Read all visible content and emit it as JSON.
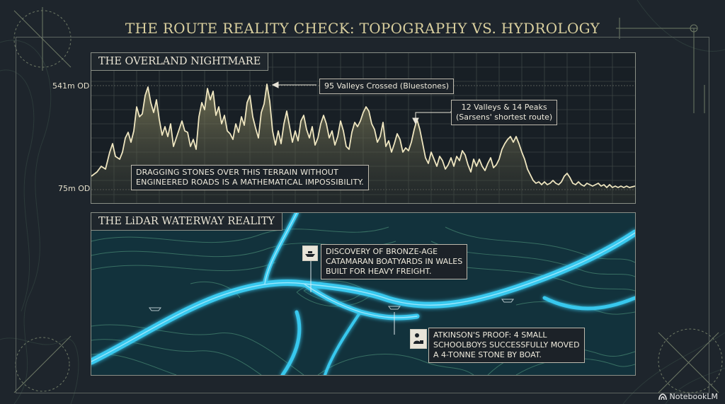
{
  "title": "THE ROUTE REALITY CHECK: TOPOGRAPHY VS. HYDROLOGY",
  "top_panel": {
    "label": "THE OVERLAND NIGHTMARE",
    "axis_top": "541m OD",
    "axis_bottom": "75m OD",
    "callout_bluestones": "95 Valleys Crossed (Bluestones)",
    "callout_sarsens_line1": "12 Valleys & 14 Peaks",
    "callout_sarsens_line2": "(Sarsens' shortest route)",
    "warning_line1": "DRAGGING STONES OVER THIS TERRAIN WITHOUT",
    "warning_line2": "ENGINEERED ROADS IS A MATHEMATICAL IMPOSSIBILITY."
  },
  "bottom_panel": {
    "label": "THE LiDAR WATERWAY REALITY",
    "boatyard_line1": "DISCOVERY OF BRONZE-AGE",
    "boatyard_line2": "CATAMARAN BOATYARDS IN WALES",
    "boatyard_line3": "BUILT FOR HEAVY FREIGHT.",
    "atkinson_line1": "ATKINSON'S PROOF: 4 SMALL",
    "atkinson_line2": "SCHOOLBOYS SUCCESSFULLY MOVED",
    "atkinson_line3": "A 4-TONNE STONE BY BOAT.",
    "icons": {
      "boatyard": "boat-icon",
      "atkinson": "person-with-stone-icon"
    }
  },
  "brand": "NotebookLM",
  "colors": {
    "background": "#1e252c",
    "title": "#d9cf9e",
    "profile_line": "#e8dfb8",
    "profile_fill": "#6f6c4e",
    "river": "#36c6ec",
    "contour": "#3f7a6a"
  }
}
